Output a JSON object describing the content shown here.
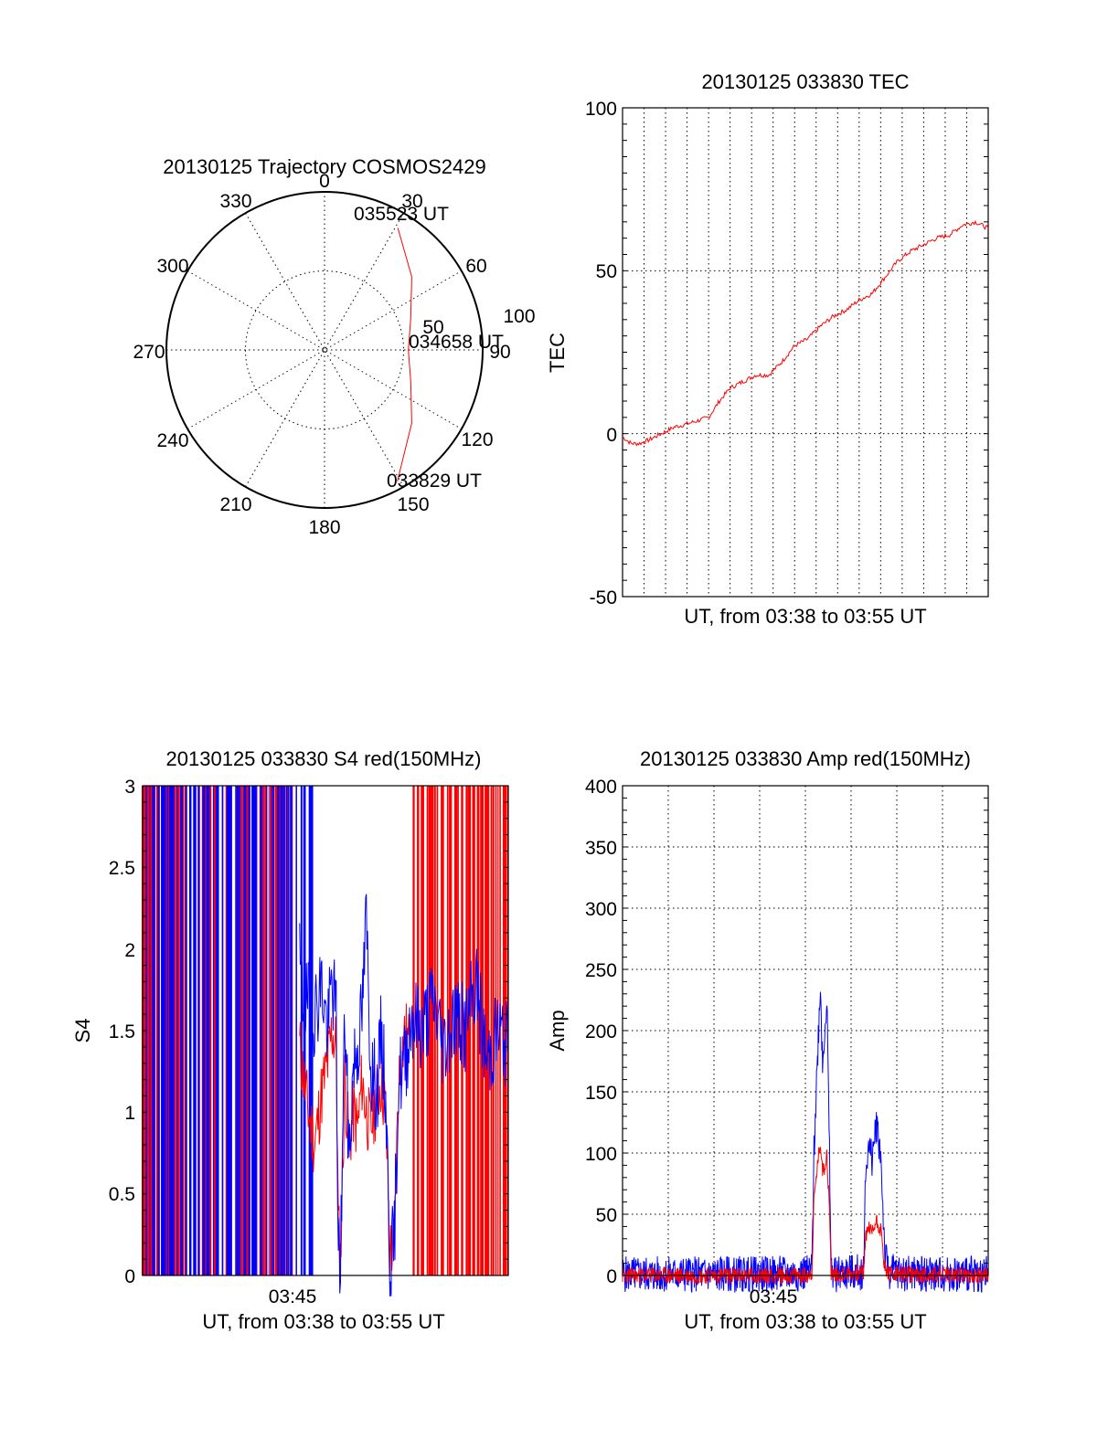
{
  "colors": {
    "red": "#ff0000",
    "blue": "#0000ff"
  },
  "chart_data": [
    {
      "id": "polar",
      "type": "polar",
      "title": "20130125 Trajectory COSMOS2429",
      "azimuth_labels": [
        "0",
        "30",
        "60",
        "90",
        "120",
        "150",
        "180",
        "210",
        "240",
        "270",
        "300",
        "330"
      ],
      "radial_labels": [
        "50",
        "100"
      ],
      "rlim": [
        0,
        100
      ],
      "grid": true,
      "trajectory": {
        "color": "red",
        "points": [
          {
            "az": 151,
            "r": 95
          },
          {
            "az": 130,
            "r": 72
          },
          {
            "az": 110,
            "r": 58
          },
          {
            "az": 90,
            "r": 53
          },
          {
            "az": 70,
            "r": 58
          },
          {
            "az": 50,
            "r": 72
          },
          {
            "az": 31,
            "r": 90
          }
        ],
        "labels": [
          {
            "text": "035523 UT",
            "at": "end"
          },
          {
            "text": "034658 UT",
            "at": "middle"
          },
          {
            "text": "033829 UT",
            "at": "start"
          }
        ]
      }
    },
    {
      "id": "tec",
      "type": "line",
      "title": "20130125 033830 TEC",
      "xlabel": "UT, from 03:38 to 03:55 UT",
      "ylabel": "TEC",
      "xlim": [
        "03:38",
        "03:55"
      ],
      "ylim": [
        -50,
        100
      ],
      "yticks": [
        "100",
        "50",
        "0",
        "-50"
      ],
      "xticks": [],
      "grid": true,
      "series": [
        {
          "color": "red",
          "x": [
            0.0,
            0.4,
            0.8,
            1.2,
            1.8,
            2.4,
            3.0,
            3.5,
            4.0,
            4.5,
            5.0,
            5.6,
            6.2,
            6.8,
            7.4,
            8.0,
            8.6,
            9.2,
            9.8,
            10.4,
            11.0,
            11.6,
            12.2,
            12.8,
            13.4,
            14.0,
            14.6,
            15.2,
            15.8,
            16.4,
            17.0
          ],
          "y": [
            -1,
            -3,
            -3,
            -2,
            0,
            2,
            3,
            4,
            5,
            10,
            14,
            16,
            18,
            18,
            22,
            27,
            29,
            33,
            36,
            38,
            41,
            43,
            48,
            53,
            56,
            58,
            60,
            61,
            64,
            65,
            63
          ]
        }
      ]
    },
    {
      "id": "s4",
      "type": "line",
      "title": "20130125 033830 S4 red(150MHz)",
      "xlabel": "UT, from 03:38 to 03:55 UT",
      "ylabel": "S4",
      "xlim": [
        "03:38",
        "03:55"
      ],
      "ylim": [
        0,
        3
      ],
      "yticks": [
        "3",
        "2.5",
        "2",
        "1.5",
        "1",
        "0.5",
        "0"
      ],
      "xticks": [
        "03:45"
      ],
      "grid": false,
      "series": [
        {
          "color": "red",
          "x": [
            7.3,
            7.5,
            7.7,
            8.0,
            8.3,
            8.6,
            8.8,
            9.0,
            9.1,
            9.2,
            9.4,
            9.6,
            9.8,
            10.0,
            10.2,
            10.4,
            10.6,
            10.9,
            11.1,
            11.3,
            11.5,
            11.7,
            11.9,
            12.0,
            12.2,
            12.4
          ],
          "y": [
            1.4,
            1.2,
            1.0,
            0.8,
            1.1,
            1.3,
            1.5,
            1.4,
            0.3,
            0.1,
            1.2,
            0.8,
            1.0,
            0.9,
            1.2,
            1.0,
            0.9,
            1.1,
            1.2,
            1.0,
            0.15,
            0.2,
            1.2,
            1.3,
            1.5,
            1.4
          ]
        },
        {
          "color": "blue",
          "x": [
            7.3,
            7.5,
            7.7,
            8.0,
            8.3,
            8.6,
            8.8,
            9.0,
            9.1,
            9.2,
            9.4,
            9.6,
            9.8,
            10.0,
            10.2,
            10.4,
            10.6,
            10.9,
            11.1,
            11.3,
            11.5,
            11.7,
            11.9,
            12.2,
            12.5,
            13.0,
            13.5,
            14.0,
            14.5,
            15.0,
            15.5,
            16.0,
            16.5,
            17.0
          ],
          "y": [
            1.9,
            1.6,
            1.7,
            1.6,
            1.8,
            1.5,
            1.8,
            1.6,
            0.15,
            0.08,
            1.6,
            0.7,
            1.3,
            1.4,
            1.6,
            2.2,
            1.3,
            1.1,
            1.5,
            1.1,
            0.1,
            0.2,
            1.2,
            1.3,
            1.6,
            1.5,
            1.7,
            1.4,
            1.6,
            1.5,
            1.8,
            1.3,
            1.5,
            1.4
          ]
        }
      ],
      "saturated_bands": {
        "red": [
          [
            0.0,
            7.0
          ],
          [
            12.6,
            17.0
          ]
        ],
        "blue": [
          [
            0.0,
            7.9
          ]
        ]
      }
    },
    {
      "id": "amp",
      "type": "line",
      "title": "20130125 033830 Amp red(150MHz)",
      "xlabel": "UT, from 03:38 to 03:55 UT",
      "ylabel": "Amp",
      "xlim": [
        "03:38",
        "03:55"
      ],
      "ylim": [
        0,
        400
      ],
      "yticks": [
        "400",
        "350",
        "300",
        "250",
        "200",
        "150",
        "100",
        "50",
        "0"
      ],
      "xticks": [
        "03:45"
      ],
      "grid": true,
      "series": [
        {
          "color": "blue",
          "x": [
            0.0,
            7.0,
            8.5,
            8.8,
            8.9,
            9.0,
            9.1,
            9.2,
            9.3,
            9.4,
            9.5,
            9.6,
            9.7,
            9.8,
            9.9,
            10.0,
            10.1,
            10.2,
            10.3,
            10.4,
            10.5,
            10.6,
            10.7,
            10.8,
            10.9,
            11.0,
            11.1,
            11.2,
            11.3,
            11.4,
            11.6,
            11.8,
            12.0,
            12.2,
            12.4,
            13.0,
            17.0
          ],
          "y": [
            1,
            1,
            2,
            4,
            100,
            150,
            195,
            240,
            170,
            205,
            225,
            120,
            5,
            2,
            1,
            1,
            2,
            2,
            3,
            2,
            2,
            3,
            2,
            2,
            3,
            2,
            3,
            4,
            80,
            105,
            95,
            125,
            100,
            15,
            3,
            2,
            1
          ]
        },
        {
          "color": "red",
          "x": [
            0.0,
            8.5,
            8.8,
            8.9,
            9.0,
            9.1,
            9.2,
            9.3,
            9.4,
            9.5,
            9.6,
            9.7,
            9.8,
            11.2,
            11.3,
            11.4,
            11.6,
            11.8,
            12.0,
            12.2,
            12.4,
            17.0
          ],
          "y": [
            0,
            0,
            2,
            60,
            80,
            95,
            110,
            85,
            90,
            100,
            60,
            3,
            1,
            2,
            30,
            40,
            35,
            45,
            38,
            5,
            1,
            0
          ]
        }
      ]
    }
  ]
}
